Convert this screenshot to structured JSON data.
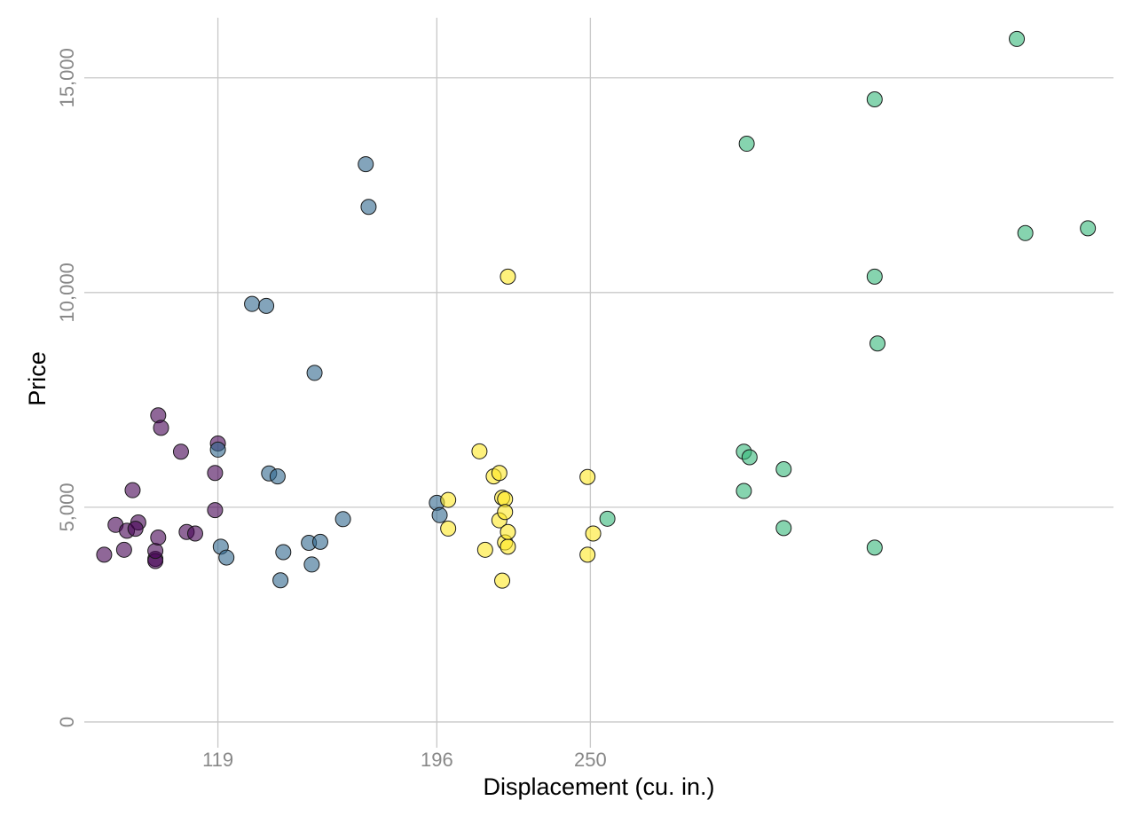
{
  "chart_data": {
    "type": "scatter",
    "xlabel": "Displacement (cu. in.)",
    "ylabel": "Price",
    "xlim": [
      72,
      434
    ],
    "ylim": [
      -600,
      16400
    ],
    "x_ticks": [
      {
        "value": 119,
        "label": "119"
      },
      {
        "value": 196,
        "label": "196"
      },
      {
        "value": 250,
        "label": "250"
      }
    ],
    "y_ticks": [
      {
        "value": 0,
        "label": "0"
      },
      {
        "value": 5000,
        "label": "5,000"
      },
      {
        "value": 10000,
        "label": "10,000"
      },
      {
        "value": 15000,
        "label": "15,000"
      }
    ],
    "grid": true,
    "legend": "none",
    "series": [
      {
        "color": "#440154",
        "x": [
          79,
          83,
          87,
          86,
          91,
          90,
          89,
          97,
          97,
          97,
          98,
          98,
          99,
          106,
          108,
          111,
          118,
          118,
          119
        ],
        "y": [
          3895,
          4589,
          4453,
          4010,
          4647,
          4499,
          5397,
          3798,
          3748,
          3984,
          4296,
          7140,
          6850,
          6295,
          4425,
          4389,
          5799,
          4934,
          6486
        ]
      },
      {
        "color": "#31688e",
        "x": [
          119,
          120,
          122,
          131,
          136,
          137,
          140,
          141,
          142,
          151,
          153,
          152,
          155,
          163,
          171,
          172,
          196,
          197
        ],
        "y": [
          6342,
          4082,
          3829,
          9735,
          9690,
          5788,
          5719,
          3299,
          3955,
          4172,
          8129,
          3667,
          4195,
          4723,
          12990,
          11995,
          5104,
          4816
        ]
      },
      {
        "color": "#35b779",
        "x": [
          256,
          304,
          304,
          305,
          306,
          318,
          318,
          350,
          350,
          350,
          351,
          400,
          403,
          425
        ],
        "y": [
          4733,
          5379,
          6295,
          13466,
          6165,
          4516,
          5886,
          4060,
          14500,
          10372,
          8814,
          15906,
          11385,
          11497
        ]
      },
      {
        "color": "#fde725",
        "x": [
          200,
          200,
          211,
          213,
          216,
          218,
          219,
          218,
          219,
          220,
          221,
          220,
          220,
          221,
          221,
          249,
          249,
          251
        ],
        "y": [
          5172,
          4504,
          6303,
          4010,
          5719,
          5798,
          5222,
          4697,
          3291,
          5189,
          10371,
          4890,
          4181,
          4082,
          4424,
          5705,
          3895,
          4389
        ]
      }
    ]
  }
}
